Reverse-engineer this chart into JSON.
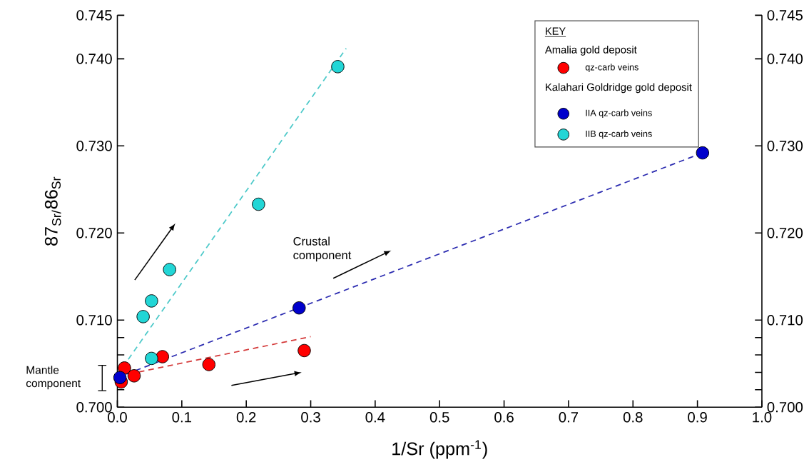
{
  "chart_data": {
    "type": "scatter",
    "xlabel": "1/Sr (ppm$^{-1}$)",
    "ylabel": "87$_{Sr/}$86$_{Sr}$",
    "legend_title": "KEY",
    "annotations": [
      "Mantle component",
      "Crustal component",
      "Amalia gold deposit",
      "Kalahari Goldridge gold deposit"
    ],
    "xlim": [
      0,
      1
    ],
    "xticks": [
      {
        "value": 0,
        "label": "0.0"
      },
      0.1,
      0.2,
      0.3,
      0.4,
      0.5,
      0.6,
      0.7,
      0.8,
      0.9,
      {
        "value": 1,
        "label": "1.0"
      }
    ],
    "ylim": [
      0.7,
      0.745
    ],
    "yticks": [
      {
        "value": 0.7,
        "label": "0.700"
      },
      {
        "value": 0.702,
        "label": null
      },
      {
        "value": 0.704,
        "label": null
      },
      {
        "value": 0.706,
        "label": null
      },
      {
        "value": 0.708,
        "label": null
      },
      {
        "value": 0.71,
        "label": "0.710"
      },
      {
        "value": 0.72,
        "label": "0.720"
      },
      {
        "value": 0.73,
        "label": "0.730"
      },
      {
        "value": 0.74,
        "label": "0.740"
      },
      0.745
    ],
    "y2lim": [
      0.7,
      0.745
    ],
    "y2ticks": [
      {
        "value": 0.7,
        "label": "0.700"
      },
      {
        "value": 0.702,
        "label": null
      },
      {
        "value": 0.704,
        "label": null
      },
      {
        "value": 0.706,
        "label": null
      },
      {
        "value": 0.708,
        "label": null
      },
      {
        "value": 0.71,
        "label": "0.710"
      },
      {
        "value": 0.72,
        "label": "0.720"
      },
      {
        "value": 0.73,
        "label": "0.730"
      },
      {
        "value": 0.74,
        "label": "0.740"
      },
      0.745
    ],
    "marker": "circle",
    "legend": "top right",
    "series": [
      {
        "name": "qz-carb veins",
        "color": "#ff0000",
        "x": [
          0.006,
          0.011,
          0.026,
          0.07,
          0.142,
          0.29
        ],
        "values": [
          0.7029,
          0.7045,
          0.7036,
          0.7058,
          0.7049,
          0.7065
        ]
      },
      {
        "name": "IIA  qz-carb veins",
        "color": "#0000cc",
        "x": [
          0.004,
          0.282,
          0.908
        ],
        "values": [
          0.7034,
          0.7114,
          0.7292
        ]
      },
      {
        "name": "IIB  qz-carb veins",
        "color": "#22d6d6",
        "x": [
          0.342,
          0.219,
          0.081,
          0.053,
          0.04,
          0.053
        ],
        "values": [
          0.7391,
          0.7233,
          0.7158,
          0.7122,
          0.7104,
          0.7056
        ]
      },
      {
        "type": "line",
        "marker": "none",
        "line_style": "dashed",
        "color": "#d43a3a",
        "x": [
          0.004,
          0.3
        ],
        "values": [
          0.7036,
          0.7081
        ]
      },
      {
        "type": "line",
        "marker": "none",
        "line_style": "dashed",
        "color": "#2b2bb0",
        "x": [
          0.014,
          0.908
        ],
        "values": [
          0.7038,
          0.7292
        ]
      },
      {
        "type": "line",
        "marker": "none",
        "line_style": "dashed",
        "color": "#4cc9c9",
        "x": [
          0.017,
          0.355
        ],
        "values": [
          0.7055,
          0.7412
        ]
      }
    ]
  }
}
